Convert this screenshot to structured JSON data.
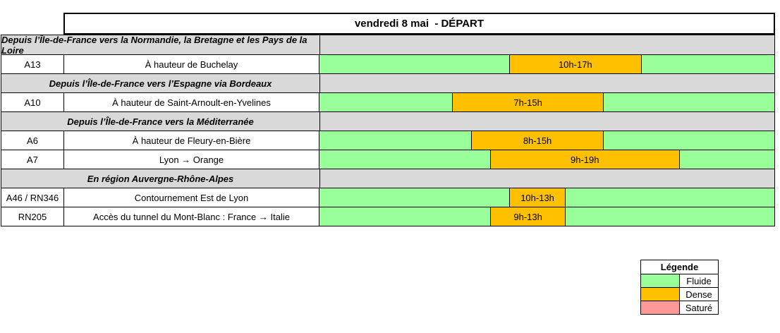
{
  "colors": {
    "fluide": "#99FF99",
    "dense": "#FFC000",
    "sature": "#FF9999",
    "section": "#D9D9D9",
    "border": "#000000"
  },
  "table": {
    "title": "vendredi 8 mai  - DÉPART",
    "timeline_hours": {
      "start": 0,
      "end": 24
    },
    "rows": [
      {
        "type": "section",
        "label": "Depuis l’Île-de-France vers la Normandie, la Bretagne et les Pays de la Loire"
      },
      {
        "type": "road",
        "code": "A13",
        "description": "À hauteur de Buchelay",
        "segment": {
          "status": "Dense",
          "label": "10h-17h",
          "start": 10,
          "end": 17
        }
      },
      {
        "type": "section",
        "label": "Depuis l’Île-de-France vers l’Espagne via Bordeaux"
      },
      {
        "type": "road",
        "code": "A10",
        "description": "À hauteur de Saint-Arnoult-en-Yvelines",
        "segment": {
          "status": "Dense",
          "label": "7h-15h",
          "start": 7,
          "end": 15
        }
      },
      {
        "type": "section",
        "label": "Depuis l’Île-de-France vers la Méditerranée"
      },
      {
        "type": "road",
        "code": "A6",
        "description": "À hauteur de Fleury-en-Bière",
        "segment": {
          "status": "Dense",
          "label": "8h-15h",
          "start": 8,
          "end": 15
        }
      },
      {
        "type": "road",
        "code": "A7",
        "description": "Lyon → Orange",
        "segment": {
          "status": "Dense",
          "label": "9h-19h",
          "start": 9,
          "end": 19
        }
      },
      {
        "type": "section",
        "label": "En région Auvergne-Rhône-Alpes"
      },
      {
        "type": "road",
        "code": "A46 / RN346",
        "description": "Contournement Est de Lyon",
        "segment": {
          "status": "Dense",
          "label": "10h-13h",
          "start": 10,
          "end": 13
        }
      },
      {
        "type": "road",
        "code": "RN205",
        "description": "Accès du tunnel du Mont-Blanc : France → Italie",
        "segment": {
          "status": "Dense",
          "label": "9h-13h",
          "start": 9,
          "end": 13
        }
      }
    ]
  },
  "legend": {
    "title": "Légende",
    "items": [
      {
        "label": "Fluide",
        "color": "fluide"
      },
      {
        "label": "Dense",
        "color": "dense"
      },
      {
        "label": "Saturé",
        "color": "sature"
      }
    ]
  }
}
